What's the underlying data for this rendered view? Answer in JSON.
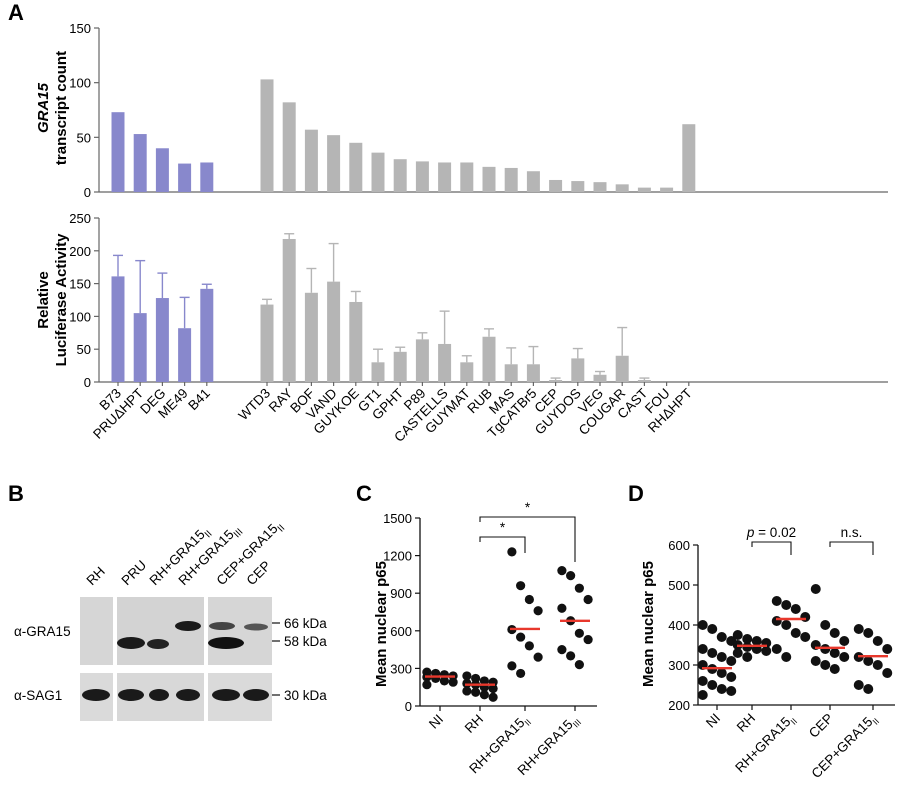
{
  "panels": {
    "A": "A",
    "B": "B",
    "C": "C",
    "D": "D"
  },
  "colors": {
    "blue": "#8888cc",
    "gray": "#b5b5b5",
    "red": "#e8382c",
    "dot": "#111111"
  },
  "chart_data": [
    {
      "id": "A_top",
      "type": "bar",
      "ylabel_line1": "GRA15",
      "ylabel_line2": "transcript count",
      "ylim": [
        0,
        150
      ],
      "yticks": [
        0,
        50,
        100,
        150
      ],
      "categories": [
        "B73",
        "PRUΔHPT",
        "DEG",
        "ME49",
        "B41",
        "WTD3",
        "RAY",
        "BOF",
        "VAND",
        "GUYKOE",
        "GT1",
        "GPHT",
        "P89",
        "CASTELLS",
        "GUYMAT",
        "RUB",
        "MAS",
        "TgCATBr5",
        "CEP",
        "GUYDOS",
        "VEG",
        "COUGAR",
        "CAST",
        "FOU",
        "RHΔHPT"
      ],
      "groups": [
        "blue",
        "blue",
        "blue",
        "blue",
        "blue",
        "gray",
        "gray",
        "gray",
        "gray",
        "gray",
        "gray",
        "gray",
        "gray",
        "gray",
        "gray",
        "gray",
        "gray",
        "gray",
        "gray",
        "gray",
        "gray",
        "gray",
        "gray",
        "gray",
        "gray"
      ],
      "values": [
        73,
        53,
        40,
        26,
        27,
        103,
        82,
        57,
        52,
        45,
        36,
        30,
        28,
        27,
        27,
        23,
        22,
        19,
        11,
        10,
        9,
        7,
        4,
        4,
        62
      ]
    },
    {
      "id": "A_bottom",
      "type": "bar",
      "ylabel_line1": "Relative",
      "ylabel_line2": "Luciferase Activity",
      "ylim": [
        0,
        250
      ],
      "yticks": [
        0,
        50,
        100,
        150,
        200,
        250
      ],
      "categories": [
        "B73",
        "PRUΔHPT",
        "DEG",
        "ME49",
        "B41",
        "WTD3",
        "RAY",
        "BOF",
        "VAND",
        "GUYKOE",
        "GT1",
        "GPHT",
        "P89",
        "CASTELLS",
        "GUYMAT",
        "RUB",
        "MAS",
        "TgCATBr5",
        "CEP",
        "GUYDOS",
        "VEG",
        "COUGAR",
        "CAST",
        "FOU",
        "RHΔHPT"
      ],
      "groups": [
        "blue",
        "blue",
        "blue",
        "blue",
        "blue",
        "gray",
        "gray",
        "gray",
        "gray",
        "gray",
        "gray",
        "gray",
        "gray",
        "gray",
        "gray",
        "gray",
        "gray",
        "gray",
        "gray",
        "gray",
        "gray",
        "gray",
        "gray",
        "gray",
        "gray"
      ],
      "values": [
        161,
        105,
        128,
        82,
        142,
        118,
        218,
        136,
        153,
        122,
        30,
        46,
        65,
        58,
        30,
        69,
        27,
        27,
        3,
        36,
        11,
        40,
        3,
        0,
        0
      ],
      "errors": [
        32,
        80,
        38,
        47,
        7,
        8,
        8,
        37,
        58,
        16,
        20,
        7,
        10,
        50,
        10,
        12,
        25,
        27,
        3,
        15,
        5,
        43,
        3,
        0,
        0
      ]
    },
    {
      "id": "C",
      "type": "scatter",
      "ylabel": "Mean nuclear p65",
      "ylim": [
        0,
        1500
      ],
      "yticks": [
        0,
        300,
        600,
        900,
        1200,
        1500
      ],
      "categories": [
        {
          "main": "NI",
          "sub": ""
        },
        {
          "main": "RH",
          "sub": ""
        },
        {
          "main": "RH+GRA15",
          "sub": "II"
        },
        {
          "main": "RH+GRA15",
          "sub": "III"
        }
      ],
      "points": [
        [
          270,
          260,
          250,
          240,
          230,
          220,
          200,
          190,
          170
        ],
        [
          240,
          220,
          200,
          190,
          180,
          170,
          150,
          140,
          120,
          110,
          90,
          70
        ],
        [
          1230,
          960,
          850,
          760,
          610,
          550,
          480,
          390,
          320,
          260
        ],
        [
          1080,
          1040,
          940,
          850,
          780,
          680,
          580,
          530,
          450,
          400,
          330
        ]
      ],
      "means": [
        235,
        170,
        615,
        680
      ],
      "significance": [
        {
          "from": 1,
          "to": 2,
          "label": "*"
        },
        {
          "from": 1,
          "to": 3,
          "label": "*"
        }
      ]
    },
    {
      "id": "D",
      "type": "scatter",
      "ylabel": "Mean nuclear p65",
      "ylim": [
        200,
        600
      ],
      "yticks": [
        200,
        300,
        400,
        500,
        600
      ],
      "categories": [
        {
          "main": "NI",
          "sub": ""
        },
        {
          "main": "RH",
          "sub": ""
        },
        {
          "main": "RH+GRA15",
          "sub": "II"
        },
        {
          "main": "CEP",
          "sub": ""
        },
        {
          "main": "CEP+GRA15",
          "sub": "II"
        }
      ],
      "points": [
        [
          400,
          390,
          370,
          360,
          340,
          330,
          320,
          310,
          300,
          290,
          280,
          270,
          260,
          250,
          240,
          235,
          225
        ],
        [
          375,
          365,
          360,
          355,
          350,
          345,
          340,
          335,
          330,
          320
        ],
        [
          460,
          450,
          440,
          420,
          410,
          400,
          380,
          370,
          340,
          320
        ],
        [
          490,
          400,
          380,
          360,
          350,
          340,
          330,
          320,
          310,
          300,
          290
        ],
        [
          390,
          380,
          360,
          340,
          320,
          310,
          300,
          280,
          250,
          240
        ]
      ],
      "means": [
        292,
        348,
        415,
        343,
        322
      ],
      "significance": [
        {
          "from": 1,
          "to": 2,
          "label_prefix": "p",
          "label": " = 0.02"
        },
        {
          "from": 3,
          "to": 4,
          "label": "n.s."
        }
      ]
    }
  ],
  "blot": {
    "lanes": [
      "RH",
      "PRU",
      "RH+GRA15",
      "RH+GRA15",
      "CEP+GRA15",
      "CEP"
    ],
    "lane_subs": [
      "",
      "",
      "II",
      "III",
      "II",
      ""
    ],
    "rows": [
      "α-GRA15",
      "α-SAG1"
    ],
    "markers_gra15": [
      "66 kDa",
      "58 kDa"
    ],
    "markers_sag1": [
      "30 kDa"
    ]
  }
}
